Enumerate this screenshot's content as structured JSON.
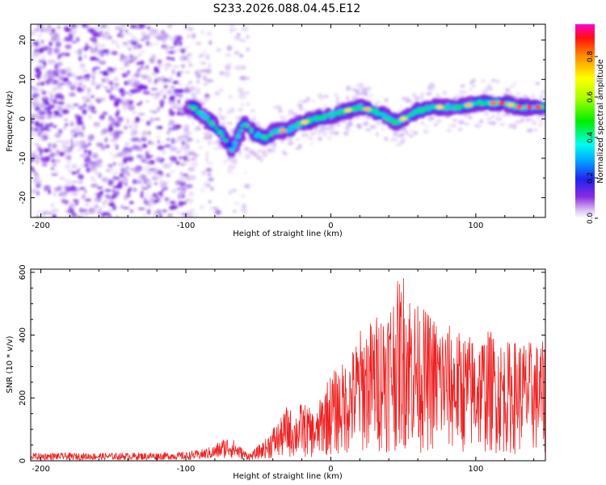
{
  "title": "S233.2026.088.04.45.E12",
  "chart_data": [
    {
      "type": "heatmap",
      "name": "spectrogram",
      "xlabel": "Height of straight line (km)",
      "ylabel": "Frequency (Hz)",
      "xlim": [
        -207,
        148
      ],
      "ylim": [
        -25,
        24
      ],
      "xticks": [
        -200,
        -100,
        0,
        100
      ],
      "yticks": [
        -20,
        -10,
        0,
        10,
        20
      ],
      "ridge": {
        "x": [
          -95,
          -85,
          -75,
          -68,
          -60,
          -52,
          -45,
          -38,
          -30,
          -20,
          -10,
          0,
          10,
          20,
          30,
          40,
          45,
          50,
          60,
          70,
          80,
          90,
          100,
          110,
          120,
          130,
          140,
          148
        ],
        "y": [
          3,
          0,
          -4,
          -8,
          -1,
          -4,
          -5,
          -3,
          -3,
          -1,
          0,
          1,
          2,
          3,
          2,
          0,
          -1,
          0,
          2,
          3,
          3,
          3,
          4,
          4,
          4,
          3,
          3,
          3
        ]
      },
      "colorbar": {
        "label": "Normalized spectral amplitude",
        "range": [
          0.0,
          0.96
        ],
        "ticks": [
          "0.0",
          "0.2",
          "0.4",
          "0.6",
          "0.8"
        ]
      }
    },
    {
      "type": "line",
      "name": "snr",
      "xlabel": "Height of straight line (km)",
      "ylabel": "SNR (10 * v/v)",
      "xlim": [
        -207,
        148
      ],
      "ylim": [
        0,
        610
      ],
      "xticks": [
        -200,
        -100,
        0,
        100
      ],
      "yticks": [
        0,
        200,
        400,
        600
      ],
      "color": "#ee2222",
      "series": [
        {
          "name": "SNR envelope",
          "x": [
            -207,
            -150,
            -100,
            -90,
            -80,
            -75,
            -70,
            -65,
            -60,
            -55,
            -50,
            -45,
            -40,
            -35,
            -30,
            -25,
            -20,
            -15,
            -10,
            -5,
            0,
            5,
            10,
            15,
            20,
            30,
            40,
            50,
            60,
            70,
            80,
            90,
            100,
            110,
            120,
            130,
            140,
            148
          ],
          "y": [
            25,
            25,
            28,
            35,
            50,
            70,
            80,
            60,
            35,
            25,
            50,
            70,
            110,
            130,
            180,
            150,
            190,
            170,
            150,
            240,
            280,
            300,
            320,
            360,
            420,
            460,
            520,
            610,
            500,
            470,
            440,
            410,
            400,
            420,
            380,
            390,
            380,
            380
          ]
        }
      ]
    }
  ]
}
